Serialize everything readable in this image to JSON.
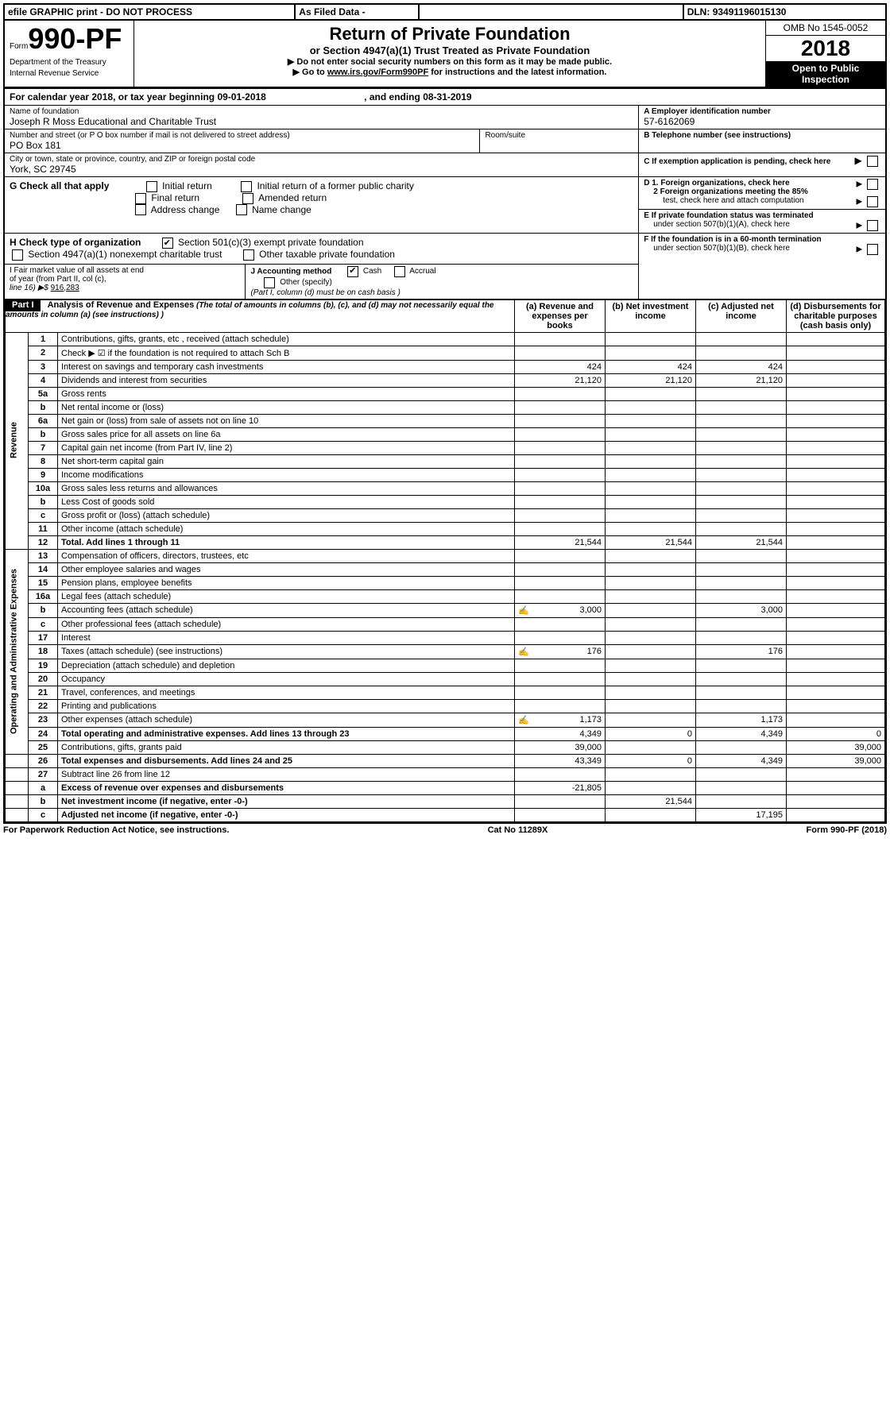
{
  "topbar": {
    "efile": "efile GRAPHIC print - DO NOT PROCESS",
    "asfiled": "As Filed Data -",
    "dln_label": "DLN:",
    "dln": "93491196015130"
  },
  "header": {
    "form_prefix": "Form",
    "form_no": "990-PF",
    "dept": "Department of the Treasury",
    "irs": "Internal Revenue Service",
    "title": "Return of Private Foundation",
    "subtitle": "or Section 4947(a)(1) Trust Treated as Private Foundation",
    "instr1": "▶ Do not enter social security numbers on this form as it may be made public.",
    "instr2_pre": "▶ Go to ",
    "instr2_link": "www.irs.gov/Form990PF",
    "instr2_post": " for instructions and the latest information.",
    "omb": "OMB No 1545-0052",
    "year": "2018",
    "open": "Open to Public Inspection"
  },
  "cal": {
    "text_pre": "For calendar year 2018, or tax year beginning ",
    "begin": "09-01-2018",
    "text_mid": " , and ending ",
    "end": "08-31-2019"
  },
  "name": {
    "label": "Name of foundation",
    "value": "Joseph R Moss Educational and Charitable Trust"
  },
  "ein": {
    "label": "A Employer identification number",
    "value": "57-6162069"
  },
  "addr": {
    "street_label": "Number and street (or P O  box number if mail is not delivered to street address)",
    "street": "PO Box 181",
    "room_label": "Room/suite",
    "city_label": "City or town, state or province, country, and ZIP or foreign postal code",
    "city": "York, SC  29745"
  },
  "tel": {
    "label": "B Telephone number (see instructions)"
  },
  "c": {
    "label": "C If exemption application is pending, check here"
  },
  "g": {
    "label": "G Check all that apply",
    "opts": [
      "Initial return",
      "Initial return of a former public charity",
      "Final return",
      "Amended return",
      "Address change",
      "Name change"
    ]
  },
  "d": {
    "d1": "D 1. Foreign organizations, check here",
    "d2a": "2 Foreign organizations meeting the 85%",
    "d2b": "test, check here and attach computation"
  },
  "e": {
    "l1": "E  If private foundation status was terminated",
    "l2": "under section 507(b)(1)(A), check here"
  },
  "h": {
    "label": "H Check type of organization",
    "o1": "Section 501(c)(3) exempt private foundation",
    "o2": "Section 4947(a)(1) nonexempt charitable trust",
    "o3": "Other taxable private foundation"
  },
  "i": {
    "l1": "I Fair market value of all assets at end",
    "l2": "of year (from Part II, col  (c),",
    "l3_pre": "line 16) ▶$ ",
    "l3_val": "916,283"
  },
  "j": {
    "label": "J Accounting method",
    "cash": "Cash",
    "accrual": "Accrual",
    "other": "Other (specify)",
    "note": "(Part I, column (d) must be on cash basis )"
  },
  "f": {
    "l1": "F  If the foundation is in a 60-month termination",
    "l2": "under section 507(b)(1)(B), check here"
  },
  "part1": {
    "label": "Part I",
    "title": "Analysis of Revenue and Expenses",
    "title_note": " (The total of amounts in columns (b), (c), and (d) may not necessarily equal the amounts in column (a) (see instructions) )",
    "cols": {
      "a": "(a) Revenue and expenses per books",
      "b": "(b) Net investment income",
      "c": "(c) Adjusted net income",
      "d": "(d) Disbursements for charitable purposes (cash basis only)"
    }
  },
  "sidelabels": {
    "rev": "Revenue",
    "exp": "Operating and Administrative Expenses"
  },
  "lines": [
    {
      "no": "1",
      "desc": "Contributions, gifts, grants, etc , received (attach schedule)"
    },
    {
      "no": "2",
      "desc": "Check ▶ ☑ if the foundation is not required to attach Sch  B"
    },
    {
      "no": "3",
      "desc": "Interest on savings and temporary cash investments",
      "a": "424",
      "b": "424",
      "c": "424"
    },
    {
      "no": "4",
      "desc": "Dividends and interest from securities",
      "a": "21,120",
      "b": "21,120",
      "c": "21,120"
    },
    {
      "no": "5a",
      "desc": "Gross rents"
    },
    {
      "no": "b",
      "desc": "Net rental income or (loss)"
    },
    {
      "no": "6a",
      "desc": "Net gain or (loss) from sale of assets not on line 10"
    },
    {
      "no": "b",
      "desc": "Gross sales price for all assets on line 6a"
    },
    {
      "no": "7",
      "desc": "Capital gain net income (from Part IV, line 2)"
    },
    {
      "no": "8",
      "desc": "Net short-term capital gain"
    },
    {
      "no": "9",
      "desc": "Income modifications"
    },
    {
      "no": "10a",
      "desc": "Gross sales less returns and allowances"
    },
    {
      "no": "b",
      "desc": "Less  Cost of goods sold"
    },
    {
      "no": "c",
      "desc": "Gross profit or (loss) (attach schedule)"
    },
    {
      "no": "11",
      "desc": "Other income (attach schedule)"
    },
    {
      "no": "12",
      "desc": "Total. Add lines 1 through 11",
      "bold": true,
      "a": "21,544",
      "b": "21,544",
      "c": "21,544"
    },
    {
      "no": "13",
      "desc": "Compensation of officers, directors, trustees, etc"
    },
    {
      "no": "14",
      "desc": "Other employee salaries and wages"
    },
    {
      "no": "15",
      "desc": "Pension plans, employee benefits"
    },
    {
      "no": "16a",
      "desc": "Legal fees (attach schedule)"
    },
    {
      "no": "b",
      "desc": "Accounting fees (attach schedule)",
      "icon": true,
      "a": "3,000",
      "c": "3,000"
    },
    {
      "no": "c",
      "desc": "Other professional fees (attach schedule)"
    },
    {
      "no": "17",
      "desc": "Interest"
    },
    {
      "no": "18",
      "desc": "Taxes (attach schedule) (see instructions)",
      "icon": true,
      "a": "176",
      "c": "176"
    },
    {
      "no": "19",
      "desc": "Depreciation (attach schedule) and depletion"
    },
    {
      "no": "20",
      "desc": "Occupancy"
    },
    {
      "no": "21",
      "desc": "Travel, conferences, and meetings"
    },
    {
      "no": "22",
      "desc": "Printing and publications"
    },
    {
      "no": "23",
      "desc": "Other expenses (attach schedule)",
      "icon": true,
      "a": "1,173",
      "c": "1,173"
    },
    {
      "no": "24",
      "desc": "Total operating and administrative expenses. Add lines 13 through 23",
      "bold": true,
      "a": "4,349",
      "b": "0",
      "c": "4,349",
      "d": "0"
    },
    {
      "no": "25",
      "desc": "Contributions, gifts, grants paid",
      "a": "39,000",
      "d": "39,000"
    },
    {
      "no": "26",
      "desc": "Total expenses and disbursements. Add lines 24 and 25",
      "bold": true,
      "a": "43,349",
      "b": "0",
      "c": "4,349",
      "d": "39,000"
    },
    {
      "no": "27",
      "desc": "Subtract line 26 from line 12"
    },
    {
      "no": "a",
      "desc": "Excess of revenue over expenses and disbursements",
      "bold": true,
      "a": "-21,805"
    },
    {
      "no": "b",
      "desc": "Net investment income (if negative, enter -0-)",
      "bold": true,
      "b": "21,544"
    },
    {
      "no": "c",
      "desc": "Adjusted net income (if negative, enter -0-)",
      "bold": true,
      "c": "17,195"
    }
  ],
  "footer": {
    "left": "For Paperwork Reduction Act Notice, see instructions.",
    "mid": "Cat  No  11289X",
    "right": "Form 990-PF (2018)"
  }
}
